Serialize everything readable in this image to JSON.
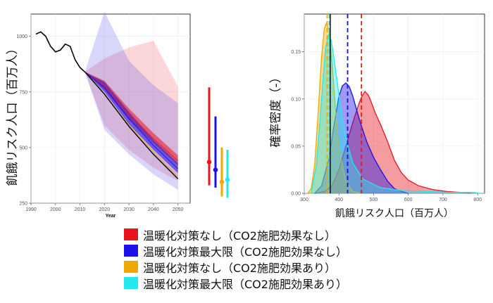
{
  "chart_data": [
    {
      "type": "line",
      "ylabel": "飢餓リスク人口（百万人）",
      "xlabel": "Year",
      "xlim": [
        1990,
        2055
      ],
      "ylim": [
        250,
        1100
      ],
      "xticks": [
        "1990",
        "2000",
        "2010",
        "2020",
        "2030",
        "2040",
        "2050"
      ],
      "yticks": [
        "250",
        "500",
        "750",
        "1000"
      ],
      "grid": true,
      "historical": {
        "color": "#000000",
        "x": [
          1992,
          1994,
          1996,
          1998,
          2000,
          2002,
          2004,
          2006,
          2008,
          2010,
          2012
        ],
        "y": [
          1010,
          1020,
          1000,
          955,
          930,
          938,
          965,
          955,
          895,
          860,
          840
        ]
      },
      "series": [
        {
          "color": "#e8141f",
          "x": [
            2012,
            2020,
            2030,
            2040,
            2050
          ],
          "median": [
            840,
            780,
            650,
            540,
            440
          ],
          "band_low": [
            840,
            760,
            625,
            520,
            420
          ],
          "band_high": [
            840,
            800,
            675,
            565,
            465
          ],
          "range_low": [
            840,
            600,
            490,
            410,
            350
          ],
          "range_high": [
            840,
            900,
            950,
            980,
            775
          ]
        },
        {
          "color": "#1a10e8",
          "x": [
            2012,
            2020,
            2030,
            2040,
            2050
          ],
          "median": [
            840,
            770,
            630,
            510,
            405
          ],
          "band_low": [
            840,
            750,
            605,
            490,
            385
          ],
          "band_high": [
            840,
            795,
            660,
            535,
            430
          ],
          "range_low": [
            840,
            580,
            470,
            380,
            310
          ],
          "range_high": [
            840,
            1110,
            890,
            780,
            700
          ]
        },
        {
          "color": "#f0a800",
          "x": [
            2012,
            2020,
            2030,
            2040,
            2050
          ],
          "median": [
            840,
            740,
            600,
            480,
            370
          ]
        },
        {
          "color": "#22e8f0",
          "x": [
            2012,
            2020,
            2030,
            2040,
            2050
          ],
          "median": [
            840,
            740,
            595,
            470,
            360
          ]
        }
      ],
      "ranges_2050": [
        {
          "color": "#e8141f",
          "low": 330,
          "high": 770,
          "median": 435
        },
        {
          "color": "#1a10e8",
          "low": 320,
          "high": 640,
          "median": 400
        },
        {
          "color": "#f0a800",
          "low": 280,
          "high": 500,
          "median": 345
        },
        {
          "color": "#22e8f0",
          "low": 275,
          "high": 490,
          "median": 355
        }
      ]
    },
    {
      "type": "area",
      "ylabel": "確率密度（-）",
      "xlabel": "飢餓リスク人口（百万人）",
      "xlim": [
        300,
        820
      ],
      "ylim": [
        0,
        0.019
      ],
      "xticks": [
        "300",
        "400",
        "500",
        "600",
        "700",
        "800"
      ],
      "yticks": [
        "0.00",
        "0.05",
        "0.10",
        "0.15"
      ],
      "grid": true,
      "reference_line": {
        "x": 375,
        "color": "#000000"
      },
      "series": [
        {
          "color": "#e8141f",
          "mean": 465,
          "x": [
            330,
            360,
            380,
            400,
            420,
            440,
            455,
            465,
            475,
            485,
            495,
            505,
            520,
            540,
            560,
            580,
            600,
            630,
            670,
            710,
            750,
            780
          ],
          "y": [
            0.0,
            0.0002,
            0.0008,
            0.0025,
            0.005,
            0.0075,
            0.0092,
            0.0102,
            0.0108,
            0.0104,
            0.0095,
            0.0085,
            0.0073,
            0.0055,
            0.0035,
            0.0022,
            0.0014,
            0.0008,
            0.0004,
            0.0002,
            0.0001,
            0.0
          ]
        },
        {
          "color": "#1a10e8",
          "mean": 425,
          "x": [
            330,
            350,
            370,
            385,
            400,
            410,
            420,
            430,
            440,
            450,
            460,
            480,
            500,
            520,
            540,
            560,
            580,
            600
          ],
          "y": [
            0.0,
            0.0008,
            0.0035,
            0.007,
            0.0103,
            0.0114,
            0.0117,
            0.0113,
            0.0103,
            0.009,
            0.0077,
            0.0055,
            0.0038,
            0.0025,
            0.0013,
            0.0005,
            0.0002,
            0.0
          ]
        },
        {
          "color": "#f0a800",
          "mean": 366,
          "x": [
            310,
            320,
            330,
            340,
            350,
            358,
            365,
            372,
            380,
            390,
            400,
            420,
            440,
            460
          ],
          "y": [
            0.0,
            0.0005,
            0.003,
            0.0085,
            0.0145,
            0.0175,
            0.0181,
            0.0172,
            0.014,
            0.009,
            0.0048,
            0.0012,
            0.0002,
            0.0
          ]
        },
        {
          "color": "#22e8f0",
          "mean": 372,
          "x": [
            320,
            335,
            345,
            355,
            362,
            370,
            378,
            385,
            395,
            405,
            420,
            440,
            470,
            520,
            580,
            650,
            720,
            790,
            805
          ],
          "y": [
            0.0,
            0.003,
            0.0075,
            0.0125,
            0.0155,
            0.0168,
            0.0162,
            0.0145,
            0.0118,
            0.009,
            0.0058,
            0.0032,
            0.0015,
            0.0006,
            0.0003,
            0.0002,
            0.0001,
            0.0001,
            0.0
          ]
        }
      ]
    }
  ],
  "legend": [
    {
      "color": "#e8141f",
      "label": "温暖化対策なし（CO2施肥効果なし）"
    },
    {
      "color": "#1a10e8",
      "label": "温暖化対策最大限（CO2施肥効果なし）"
    },
    {
      "color": "#f0a800",
      "label": "温暖化対策なし（CO2施肥効果あり）"
    },
    {
      "color": "#22e8f0",
      "label": "温暖化対策最大限（CO2施肥効果あり）"
    }
  ]
}
